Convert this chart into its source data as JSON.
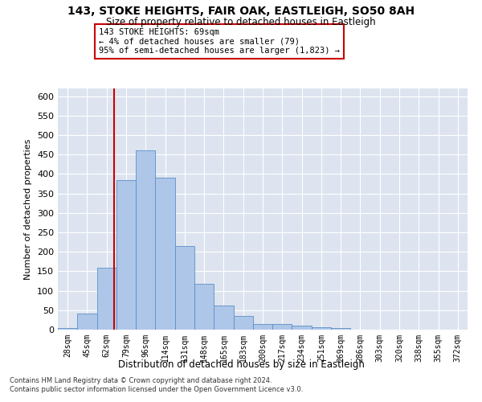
{
  "title1": "143, STOKE HEIGHTS, FAIR OAK, EASTLEIGH, SO50 8AH",
  "title2": "Size of property relative to detached houses in Eastleigh",
  "xlabel": "Distribution of detached houses by size in Eastleigh",
  "ylabel": "Number of detached properties",
  "categories": [
    "28sqm",
    "45sqm",
    "62sqm",
    "79sqm",
    "96sqm",
    "114sqm",
    "131sqm",
    "148sqm",
    "165sqm",
    "183sqm",
    "200sqm",
    "217sqm",
    "234sqm",
    "251sqm",
    "269sqm",
    "286sqm",
    "303sqm",
    "320sqm",
    "338sqm",
    "355sqm",
    "372sqm"
  ],
  "bar_heights": [
    5,
    42,
    160,
    385,
    460,
    390,
    215,
    118,
    62,
    35,
    14,
    14,
    10,
    6,
    4,
    1,
    0,
    0,
    0,
    0,
    0
  ],
  "bar_color": "#aec6e8",
  "bar_edge_color": "#5b8fc9",
  "vline_color": "#cc0000",
  "vline_x": 2.4,
  "annotation_text": "143 STOKE HEIGHTS: 69sqm\n← 4% of detached houses are smaller (79)\n95% of semi-detached houses are larger (1,823) →",
  "annotation_box_color": "#ffffff",
  "annotation_box_edge": "#cc0000",
  "ylim": [
    0,
    620
  ],
  "yticks": [
    0,
    50,
    100,
    150,
    200,
    250,
    300,
    350,
    400,
    450,
    500,
    550,
    600
  ],
  "background_color": "#dde4ef",
  "footnote1": "Contains HM Land Registry data © Crown copyright and database right 2024.",
  "footnote2": "Contains public sector information licensed under the Open Government Licence v3.0."
}
